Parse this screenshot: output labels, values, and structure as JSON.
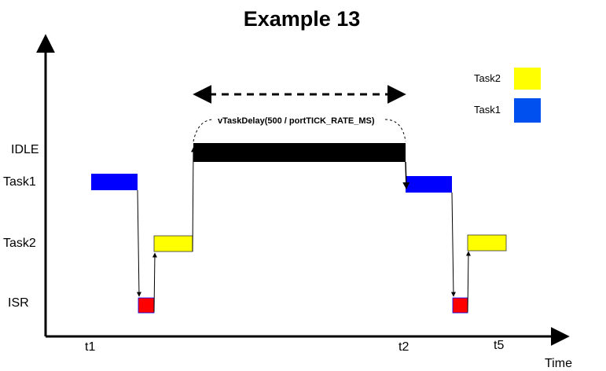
{
  "title": "Example 13",
  "axis": {
    "x_label": "Time",
    "rows": [
      "IDLE",
      "Task1",
      "Task2",
      "ISR"
    ],
    "ticks": [
      "t1",
      "t2",
      "t5"
    ]
  },
  "legend": [
    {
      "label": "Task2",
      "color": "#ffff00"
    },
    {
      "label": "Task1",
      "color": "#0050ef"
    }
  ],
  "annotation": "vTaskDelay(500 / portTICK_RATE_MS)",
  "colors": {
    "idle": "#000000",
    "task1": "#0000ff",
    "task2": "#ffff00",
    "isr": "#ff0000",
    "legend_task1": "#0050ef"
  }
}
